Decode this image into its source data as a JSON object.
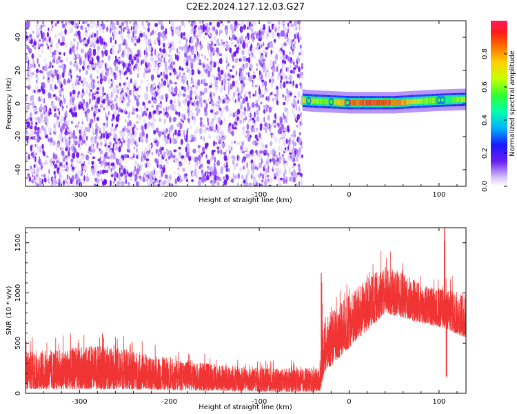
{
  "title": "C2E2.2024.127.12.03.G27",
  "chart_data": [
    {
      "type": "heatmap",
      "xlabel": "Height of straight line (km)",
      "ylabel": "Frequency (Hz)",
      "xlim": [
        -360,
        130
      ],
      "ylim": [
        -50,
        50
      ],
      "xticks": [
        -300,
        -200,
        -100,
        0,
        100
      ],
      "yticks": [
        -40,
        -20,
        0,
        20,
        40
      ],
      "noise_region_x": [
        -360,
        -52
      ],
      "signal_band": {
        "x_start": -52,
        "x_end": 130,
        "center_freq_hz": [
          {
            "x": -52,
            "f": 2
          },
          {
            "x": -40,
            "f": 1.5
          },
          {
            "x": -20,
            "f": 1
          },
          {
            "x": 0,
            "f": 0.5
          },
          {
            "x": 50,
            "f": 0.5
          },
          {
            "x": 100,
            "f": 2
          },
          {
            "x": 130,
            "f": 2.5
          }
        ],
        "normalized_amplitude": [
          {
            "x": -52,
            "a": 0.7
          },
          {
            "x": -25,
            "a": 0.6
          },
          {
            "x": 0,
            "a": 0.85
          },
          {
            "x": 40,
            "a": 0.9
          },
          {
            "x": 90,
            "a": 0.6
          },
          {
            "x": 110,
            "a": 0.5
          },
          {
            "x": 130,
            "a": 0.7
          }
        ]
      },
      "colorbar": {
        "label": "Normalized spectral amplitude",
        "range": [
          0,
          1
        ],
        "ticks": [
          "0.0",
          "0.2",
          "0.4",
          "0.6",
          "0.8"
        ]
      },
      "grid": false
    },
    {
      "type": "line",
      "xlabel": "Height of straight line (km)",
      "ylabel": "SNR (10 * v/v)",
      "xlim": [
        -360,
        130
      ],
      "ylim": [
        0,
        1650
      ],
      "xticks": [
        -300,
        -200,
        -100,
        0,
        100
      ],
      "yticks": [
        0,
        500,
        1000,
        1500
      ],
      "series": [
        {
          "color": "#f03434",
          "envelope_low": [
            {
              "x": -360,
              "y": 40
            },
            {
              "x": -250,
              "y": 40
            },
            {
              "x": -100,
              "y": 15
            },
            {
              "x": -32,
              "y": 15
            },
            {
              "x": -28,
              "y": 200
            },
            {
              "x": 0,
              "y": 450
            },
            {
              "x": 40,
              "y": 800
            },
            {
              "x": 80,
              "y": 700
            },
            {
              "x": 105,
              "y": 650
            },
            {
              "x": 130,
              "y": 550
            }
          ],
          "envelope_high": [
            {
              "x": -360,
              "y": 420
            },
            {
              "x": -270,
              "y": 480
            },
            {
              "x": -200,
              "y": 350
            },
            {
              "x": -100,
              "y": 250
            },
            {
              "x": -33,
              "y": 250
            },
            {
              "x": -30,
              "y": 700
            },
            {
              "x": 0,
              "y": 1000
            },
            {
              "x": 40,
              "y": 1280
            },
            {
              "x": 80,
              "y": 1100
            },
            {
              "x": 100,
              "y": 1050
            },
            {
              "x": 130,
              "y": 1000
            }
          ],
          "spikes": [
            {
              "x": -31,
              "y": 1200
            },
            {
              "x": 106,
              "y": 1650
            },
            {
              "x": 108,
              "y": 170
            }
          ]
        }
      ],
      "grid": false
    }
  ]
}
